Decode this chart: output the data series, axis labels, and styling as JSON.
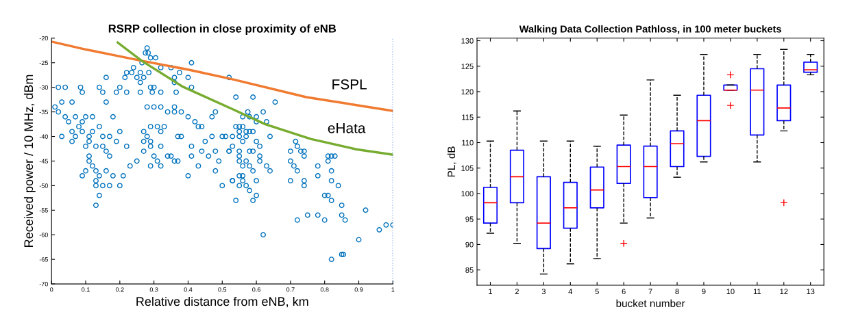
{
  "chart_data": [
    {
      "type": "scatter",
      "title": "RSRP collection in close proximity of eNB",
      "xlabel": "Relative distance from eNB, km",
      "ylabel": "Received power / 10 MHz, dBm",
      "xlim": [
        0,
        1
      ],
      "ylim": [
        -70,
        -20
      ],
      "xticks": [
        0,
        0.1,
        0.2,
        0.3,
        0.4,
        0.5,
        0.6,
        0.7,
        0.8,
        0.9,
        1
      ],
      "yticks": [
        -70,
        -65,
        -60,
        -55,
        -50,
        -45,
        -40,
        -35,
        -30,
        -25,
        -20
      ],
      "grid": false,
      "legend": false,
      "ref_lines": [
        {
          "axis": "x",
          "value": 1,
          "color": "#4a7fd6",
          "line_style": "dotted"
        }
      ],
      "series": [
        {
          "type": "scatter",
          "color": "#0072bd",
          "marker": "circle",
          "x": [
            0.28,
            0.275,
            0.283,
            0.29,
            0.305,
            0.265,
            0.41,
            0.24,
            0.32,
            0.35,
            0.22,
            0.235,
            0.26,
            0.285,
            0.375,
            0.16,
            0.215,
            0.25,
            0.27,
            0.36,
            0.4,
            0.52,
            0.26,
            0.36,
            0.02,
            0.04,
            0.085,
            0.14,
            0.2,
            0.29,
            0.3,
            0.41,
            0.09,
            0.15,
            0.19,
            0.22,
            0.26,
            0.295,
            0.32,
            0.365,
            0.02,
            0.04,
            0.07,
            0.1,
            0.12,
            0.18,
            0.05,
            0.09,
            0.08,
            0.14,
            0.06,
            0.09,
            0.12,
            0.2,
            0.03,
            0.07,
            0.11,
            0.15,
            0.17,
            0.06,
            0.11,
            0.19,
            0.1,
            0.13,
            0.15,
            0.22,
            0.16,
            0.11,
            0.17,
            0.11,
            0.25,
            0.23,
            0.12,
            0.13,
            0.1,
            0.16,
            0.09,
            0.14,
            0.18,
            0.21,
            0.13,
            0.13,
            0.15,
            0.2,
            0.17,
            0.14,
            0.13,
            0.27,
            0.28,
            0.27,
            0.29,
            0.29,
            0.32,
            0.27,
            0.3,
            0.34,
            0.35,
            0.31,
            0.36,
            0.37,
            0.29,
            0.32,
            0.43,
            0.4,
            0.48,
            0.5,
            0.29,
            0.31,
            0.33,
            0.32,
            0.37,
            0.38,
            0.41,
            0.41,
            0.44,
            0.45,
            0.46,
            0.47,
            0.48,
            0.49,
            0.5,
            0.52,
            0.53,
            0.43,
            0.44,
            0.42,
            0.4,
            0.34,
            0.36,
            0.38,
            0.47,
            0.48,
            0.36,
            0.3,
            0.32,
            0.28,
            0.01,
            0.03,
            0.06,
            0.16,
            0.54,
            0.59,
            0.655,
            0.575,
            0.62,
            0.56,
            0.58,
            0.6,
            0.6,
            0.63,
            0.54,
            0.55,
            0.56,
            0.55,
            0.57,
            0.58,
            0.59,
            0.51,
            0.53,
            0.55,
            0.57,
            0.64,
            0.56,
            0.6,
            0.715,
            0.53,
            0.61,
            0.72,
            0.52,
            0.55,
            0.58,
            0.59,
            0.7,
            0.74,
            0.73,
            0.55,
            0.61,
            0.74,
            0.81,
            0.82,
            0.83,
            0.55,
            0.57,
            0.61,
            0.7,
            0.81,
            0.56,
            0.58,
            0.63,
            0.71,
            0.78,
            0.59,
            0.64,
            0.72,
            0.82,
            0.55,
            0.56,
            0.78,
            0.53,
            0.56,
            0.6,
            0.7,
            0.74,
            0.82,
            0.55,
            0.57,
            0.74,
            0.84,
            0.58,
            0.6,
            0.8,
            0.81,
            0.54,
            0.59,
            0.82,
            0.85,
            0.92,
            0.75,
            0.78,
            0.85,
            0.72,
            0.8,
            0.86,
            0.98,
            1.0,
            0.96,
            0.62,
            0.9,
            0.85,
            0.855,
            0.82
          ],
          "values": [
            -22,
            -23,
            -23,
            -24,
            -24,
            -25,
            -25,
            -26,
            -26,
            -26,
            -27,
            -27,
            -27,
            -27,
            -27,
            -28,
            -28,
            -28,
            -28,
            -28,
            -28,
            -28,
            -29,
            -29,
            -30,
            -30,
            -30,
            -30,
            -30,
            -30,
            -30,
            -30,
            -31,
            -31,
            -31,
            -31,
            -31,
            -31,
            -31,
            -31,
            -35,
            -36,
            -36,
            -36,
            -36,
            -36,
            -37,
            -37,
            -38,
            -38,
            -39,
            -39,
            -39,
            -39,
            -40,
            -40,
            -40,
            -40,
            -40,
            -41,
            -41,
            -41,
            -42,
            -42,
            -42,
            -42,
            -43,
            -44,
            -44,
            -45,
            -45,
            -46,
            -46,
            -47,
            -47,
            -47,
            -48,
            -48,
            -48,
            -48,
            -49,
            -50,
            -50,
            -50,
            -50,
            -52,
            -54,
            -39,
            -40,
            -41,
            -41,
            -42,
            -42,
            -43,
            -44,
            -44,
            -44,
            -45,
            -45,
            -45,
            -46,
            -46,
            -46,
            -48,
            -47,
            -50,
            -38,
            -38,
            -38,
            -39,
            -40,
            -40,
            -44,
            -42,
            -43,
            -41,
            -44,
            -40,
            -43,
            -45,
            -40,
            -43,
            -49,
            -38,
            -38,
            -37,
            -36,
            -35,
            -35,
            -35,
            -36,
            -35,
            -34,
            -34,
            -34,
            -34,
            -34,
            -33,
            -33,
            -33,
            -32,
            -32,
            -33,
            -35,
            -35,
            -36,
            -36,
            -36,
            -37,
            -37,
            -38,
            -38,
            -38,
            -39,
            -39,
            -39,
            -39,
            -40,
            -40,
            -40,
            -40,
            -40,
            -41,
            -41,
            -41,
            -42,
            -42,
            -42,
            -43,
            -43,
            -43,
            -43,
            -43,
            -43,
            -43,
            -44,
            -44,
            -44,
            -44,
            -44,
            -44,
            -45,
            -45,
            -45,
            -45,
            -45,
            -46,
            -46,
            -46,
            -46,
            -46,
            -47,
            -47,
            -47,
            -47,
            -48,
            -48,
            -48,
            -49,
            -49,
            -49,
            -49,
            -49,
            -49,
            -50,
            -50,
            -50,
            -50,
            -51,
            -52,
            -52,
            -52,
            -53,
            -53,
            -53,
            -54,
            -55,
            -56,
            -56,
            -56,
            -57,
            -57,
            -57,
            -58,
            -58,
            -59,
            -60,
            -61,
            -64,
            -64,
            -65
          ]
        },
        {
          "type": "line",
          "name": "FSPL",
          "color": "#f07a30",
          "x": [
            0,
            0.1,
            0.2,
            0.264,
            0.4,
            0.532,
            0.746,
            0.9,
            1.0
          ],
          "values": [
            -20.7,
            -22.3,
            -23.7,
            -24.6,
            -26.4,
            -28.4,
            -32.0,
            -33.7,
            -34.8
          ]
        },
        {
          "type": "line",
          "name": "eHata",
          "color": "#77ac30",
          "x": [
            0.194,
            0.264,
            0.385,
            0.532,
            0.626,
            0.759,
            0.892,
            1.0
          ],
          "values": [
            -20.9,
            -24.6,
            -29.9,
            -34.5,
            -37.5,
            -40.5,
            -42.6,
            -43.7
          ]
        }
      ]
    },
    {
      "type": "box",
      "title": "Walking Data Collection Pathloss, in 100 meter buckets",
      "xlabel": "bucket number",
      "ylabel": "PL, dB",
      "ylim": [
        82,
        130.5
      ],
      "yticks": [
        85,
        90,
        95,
        100,
        105,
        110,
        115,
        120,
        125,
        130
      ],
      "grid": false,
      "legend": false,
      "line_style": "dashed",
      "marker": "cross",
      "categories": [
        "1",
        "2",
        "3",
        "4",
        "5",
        "6",
        "7",
        "8",
        "9",
        "10",
        "11",
        "12",
        "13"
      ],
      "series": [
        {
          "color": "#0000ff",
          "boxes": [
            {
              "low": 92.2,
              "q1": 94.2,
              "median": 98.2,
              "q3": 101.2,
              "high": 110.3
            },
            {
              "low": 90.2,
              "q1": 98.2,
              "median": 103.3,
              "q3": 108.5,
              "high": 116.2
            },
            {
              "low": 84.2,
              "q1": 89.2,
              "median": 94.2,
              "q3": 103.3,
              "high": 110.3
            },
            {
              "low": 86.2,
              "q1": 93.2,
              "median": 97.2,
              "q3": 102.2,
              "high": 110.3
            },
            {
              "low": 87.2,
              "q1": 97.2,
              "median": 100.7,
              "q3": 105.2,
              "high": 109.3
            },
            {
              "low": 94.2,
              "q1": 102.0,
              "median": 105.3,
              "q3": 109.5,
              "high": 115.4,
              "outliers": [
                90.2
              ]
            },
            {
              "low": 95.2,
              "q1": 99.2,
              "median": 105.3,
              "q3": 109.3,
              "high": 122.3
            },
            {
              "low": 103.2,
              "q1": 105.3,
              "median": 109.8,
              "q3": 112.3,
              "high": 119.3
            },
            {
              "low": 106.2,
              "q1": 107.3,
              "median": 114.3,
              "q3": 119.3,
              "high": 127.3
            },
            {
              "low": 120.3,
              "q1": 120.3,
              "median": 120.3,
              "q3": 121.3,
              "high": 121.3,
              "outliers": [
                123.3,
                117.3
              ]
            },
            {
              "low": 106.2,
              "q1": 111.5,
              "median": 120.3,
              "q3": 124.5,
              "high": 127.3
            },
            {
              "low": 112.3,
              "q1": 114.3,
              "median": 116.8,
              "q3": 121.3,
              "high": 128.3,
              "outliers": [
                98.2
              ]
            },
            {
              "low": 123.3,
              "q1": 123.8,
              "median": 124.3,
              "q3": 125.8,
              "high": 127.3
            }
          ]
        }
      ]
    }
  ]
}
